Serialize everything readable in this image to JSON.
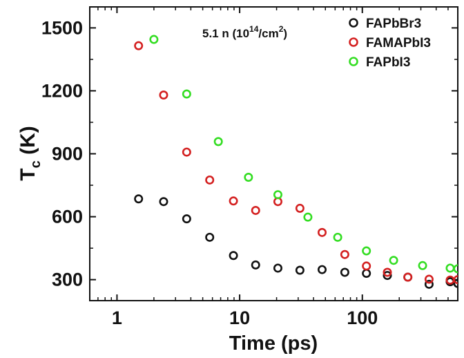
{
  "chart_data": {
    "type": "scatter",
    "title": "",
    "xlabel": "Time (ps)",
    "ylabel_main": "T",
    "ylabel_sub": "c",
    "ylabel_unit": "(K)",
    "xscale": "log",
    "xlim": [
      0.6,
      600
    ],
    "ylim": [
      200,
      1600
    ],
    "xticks": [
      1,
      10,
      100
    ],
    "xtick_labels": [
      "1",
      "10",
      "100"
    ],
    "yticks": [
      300,
      600,
      900,
      1200,
      1500
    ],
    "ytick_labels": [
      "300",
      "600",
      "900",
      "1200",
      "1500"
    ],
    "grid": false,
    "legend_position": "top-right",
    "annotation": {
      "prefix": "5.1 n (10",
      "superscript_1": "14",
      "middle": "/cm",
      "superscript_2": "2",
      "suffix": ")"
    },
    "series": [
      {
        "name": "FAPbBr3",
        "color": "#111111",
        "x": [
          1.5,
          2.4,
          3.7,
          5.7,
          8.9,
          13.5,
          20.5,
          31,
          47,
          72,
          108,
          160,
          235,
          350,
          520,
          600
        ],
        "y": [
          685,
          672,
          590,
          502,
          415,
          370,
          355,
          345,
          348,
          335,
          330,
          320,
          312,
          278,
          290,
          282
        ]
      },
      {
        "name": "FAMAPbI3",
        "color": "#d42020",
        "x": [
          1.5,
          2.4,
          3.7,
          5.7,
          8.9,
          13.5,
          20.5,
          31,
          47,
          72,
          108,
          160,
          235,
          350,
          520,
          600
        ],
        "y": [
          1415,
          1180,
          908,
          775,
          675,
          630,
          672,
          640,
          525,
          420,
          365,
          335,
          312,
          302,
          298,
          300
        ]
      },
      {
        "name": "FAPbI3",
        "color": "#33dd22",
        "x": [
          2.0,
          3.7,
          6.7,
          11.8,
          20.5,
          36,
          63,
          108,
          180,
          310,
          520,
          600
        ],
        "y": [
          1445,
          1185,
          958,
          788,
          705,
          598,
          502,
          437,
          392,
          367,
          355,
          352
        ]
      }
    ]
  }
}
